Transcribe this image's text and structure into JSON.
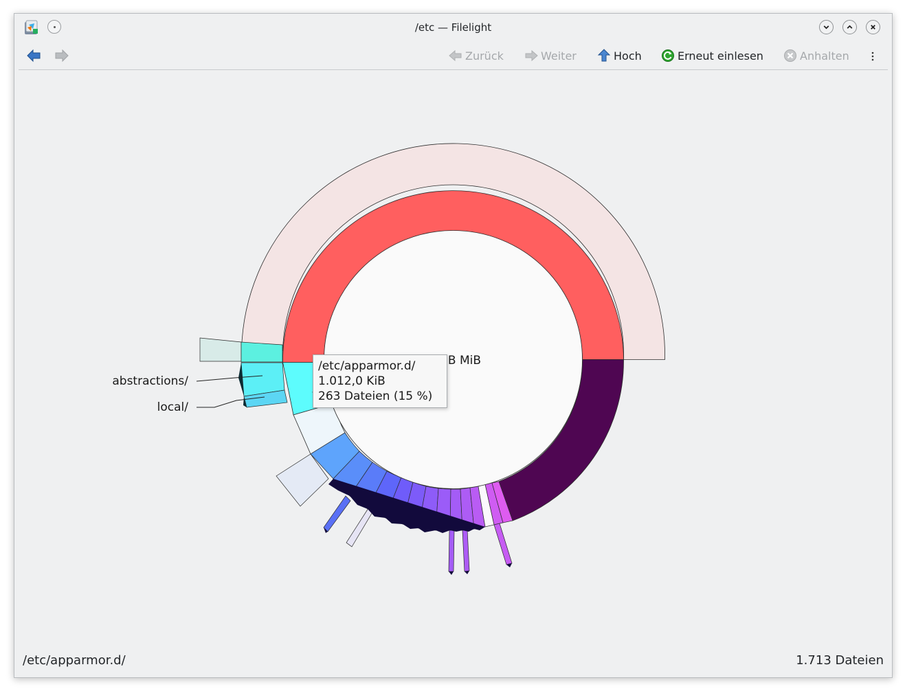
{
  "window": {
    "title": "/etc — Filelight"
  },
  "toolbar": {
    "back": "Zurück",
    "forward": "Weiter",
    "up": "Hoch",
    "rescan": "Erneut einlesen",
    "stop": "Anhalten"
  },
  "chart": {
    "center_text": "B MiB",
    "labels": {
      "abstractions": "abstractions/",
      "local": "local/"
    },
    "colors": {
      "root_ring": "#ff5f5f",
      "outer_ring": "#f4e4e4",
      "dark_segment": "#4f0652",
      "selected": "#5dfcfd"
    }
  },
  "tooltip": {
    "path": "/etc/apparmor.d/",
    "size": "1.012,0 KiB",
    "files": "263 Dateien (15 %)"
  },
  "status": {
    "path": "/etc/apparmor.d/",
    "files": "1.713 Dateien"
  }
}
